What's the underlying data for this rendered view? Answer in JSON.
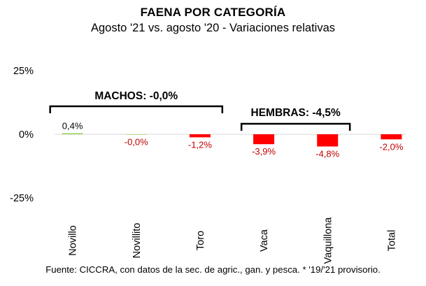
{
  "chart_data": {
    "type": "bar",
    "title": "FAENA POR CATEGORÍA",
    "subtitle": "Agosto '21 vs. agosto '20 - Variaciones relativas",
    "categories": [
      "Novillo",
      "Novillito",
      "Toro",
      "Vaca",
      "Vaquillona",
      "Total"
    ],
    "values": [
      0.4,
      -0.0,
      -1.2,
      -3.9,
      -4.8,
      -2.0
    ],
    "data_labels": [
      "0,4%",
      "-0,0%",
      "-1,2%",
      "-3,9%",
      "-4,8%",
      "-2,0%"
    ],
    "ylim": [
      -25,
      25
    ],
    "yticks": [
      {
        "value": 25,
        "label": "25%"
      },
      {
        "value": 0,
        "label": "0%"
      },
      {
        "value": -25,
        "label": "-25%"
      }
    ],
    "grid": false,
    "groups": [
      {
        "label": "MACHOS: -0,0%",
        "categories": [
          "Novillo",
          "Novillito",
          "Toro"
        ]
      },
      {
        "label": "HEMBRAS: -4,5%",
        "categories": [
          "Vaca",
          "Vaquillona"
        ]
      }
    ],
    "colors": {
      "positive_bar": "#92d050",
      "negative_bar": "#ff0000",
      "positive_label": "#000000",
      "negative_label": "#c00000",
      "axis": "#d9d9d9"
    }
  },
  "footer": "Fuente: CICCRA, con datos de la sec. de agric., gan. y pesca. * '19/'21 provisorio."
}
